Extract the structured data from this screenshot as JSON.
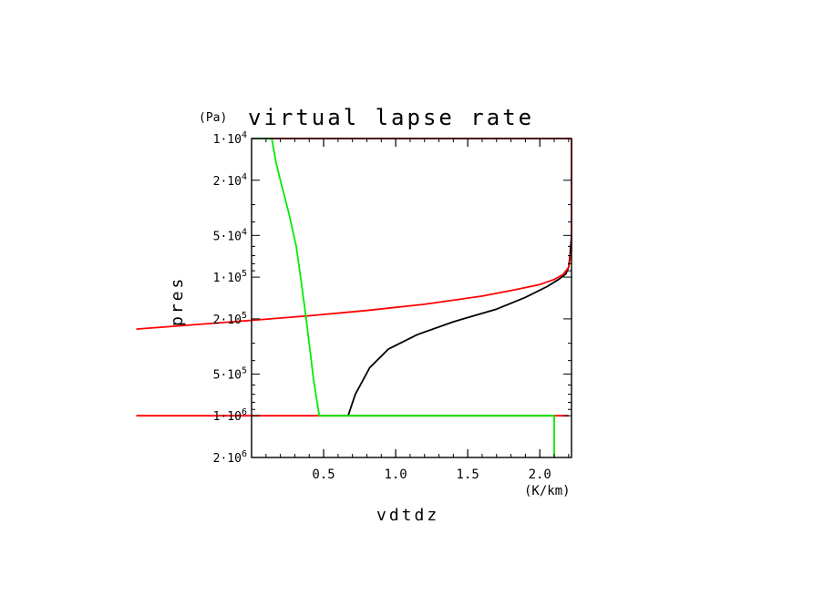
{
  "chart_data": {
    "type": "line",
    "title": "virtual lapse rate",
    "y_unit": "(Pa)",
    "xlabel": "vdtdz",
    "x_unit": "(K/km)",
    "ylabel": "pres",
    "y_scale": "log",
    "y_reversed": true,
    "xlim": [
      0.0,
      2.22
    ],
    "ylim": [
      10000,
      2000000
    ],
    "x_ticks": [
      {
        "value": 0.5,
        "label": "0.5"
      },
      {
        "value": 1.0,
        "label": "1.0"
      },
      {
        "value": 1.5,
        "label": "1.5"
      },
      {
        "value": 2.0,
        "label": "2.0"
      }
    ],
    "y_ticks": [
      {
        "value": 10000,
        "mant": "1",
        "exp": "4"
      },
      {
        "value": 20000,
        "mant": "2",
        "exp": "4"
      },
      {
        "value": 50000,
        "mant": "5",
        "exp": "4"
      },
      {
        "value": 100000,
        "mant": "1",
        "exp": "5"
      },
      {
        "value": 200000,
        "mant": "2",
        "exp": "5"
      },
      {
        "value": 500000,
        "mant": "5",
        "exp": "5"
      },
      {
        "value": 1000000,
        "mant": "1",
        "exp": "6"
      },
      {
        "value": 2000000,
        "mant": "2",
        "exp": "6"
      }
    ],
    "series": [
      {
        "color": "#000000",
        "points": [
          [
            0.67,
            1000000
          ],
          [
            0.72,
            700000
          ],
          [
            0.82,
            450000
          ],
          [
            0.95,
            330000
          ],
          [
            1.15,
            260000
          ],
          [
            1.4,
            210000
          ],
          [
            1.7,
            170000
          ],
          [
            1.9,
            140000
          ],
          [
            2.05,
            117000
          ],
          [
            2.13,
            104000
          ],
          [
            2.18,
            95000
          ],
          [
            2.2,
            85000
          ],
          [
            2.21,
            70000
          ],
          [
            2.22,
            50000
          ]
        ]
      },
      {
        "color": "#ff0000",
        "points": [
          [
            -0.8,
            1000000
          ],
          [
            0.0,
            1000000
          ],
          [
            0.5,
            1000000
          ],
          [
            2.2,
            1000000
          ]
        ]
      },
      {
        "color": "#ff0000",
        "points": [
          [
            -0.8,
            237000
          ],
          [
            0.0,
            205000
          ],
          [
            0.4,
            190000
          ],
          [
            0.8,
            174000
          ],
          [
            1.2,
            157000
          ],
          [
            1.6,
            137000
          ],
          [
            1.85,
            122000
          ],
          [
            2.0,
            113000
          ],
          [
            2.1,
            104000
          ],
          [
            2.16,
            96000
          ],
          [
            2.2,
            85000
          ],
          [
            2.22,
            65000
          ],
          [
            2.22,
            10000
          ]
        ]
      },
      {
        "color": "#ff0000",
        "points": [
          [
            0.0,
            10000
          ],
          [
            2.22,
            10000
          ]
        ]
      },
      {
        "color": "#00ee00",
        "points": [
          [
            0.0,
            10000
          ],
          [
            0.14,
            10000
          ],
          [
            0.17,
            15000
          ],
          [
            0.21,
            22000
          ],
          [
            0.26,
            35000
          ],
          [
            0.31,
            60000
          ],
          [
            0.34,
            100000
          ],
          [
            0.37,
            170000
          ],
          [
            0.4,
            300000
          ],
          [
            0.43,
            550000
          ],
          [
            0.47,
            1000000
          ],
          [
            2.1,
            1000000
          ],
          [
            2.1,
            2000000
          ]
        ]
      }
    ]
  }
}
